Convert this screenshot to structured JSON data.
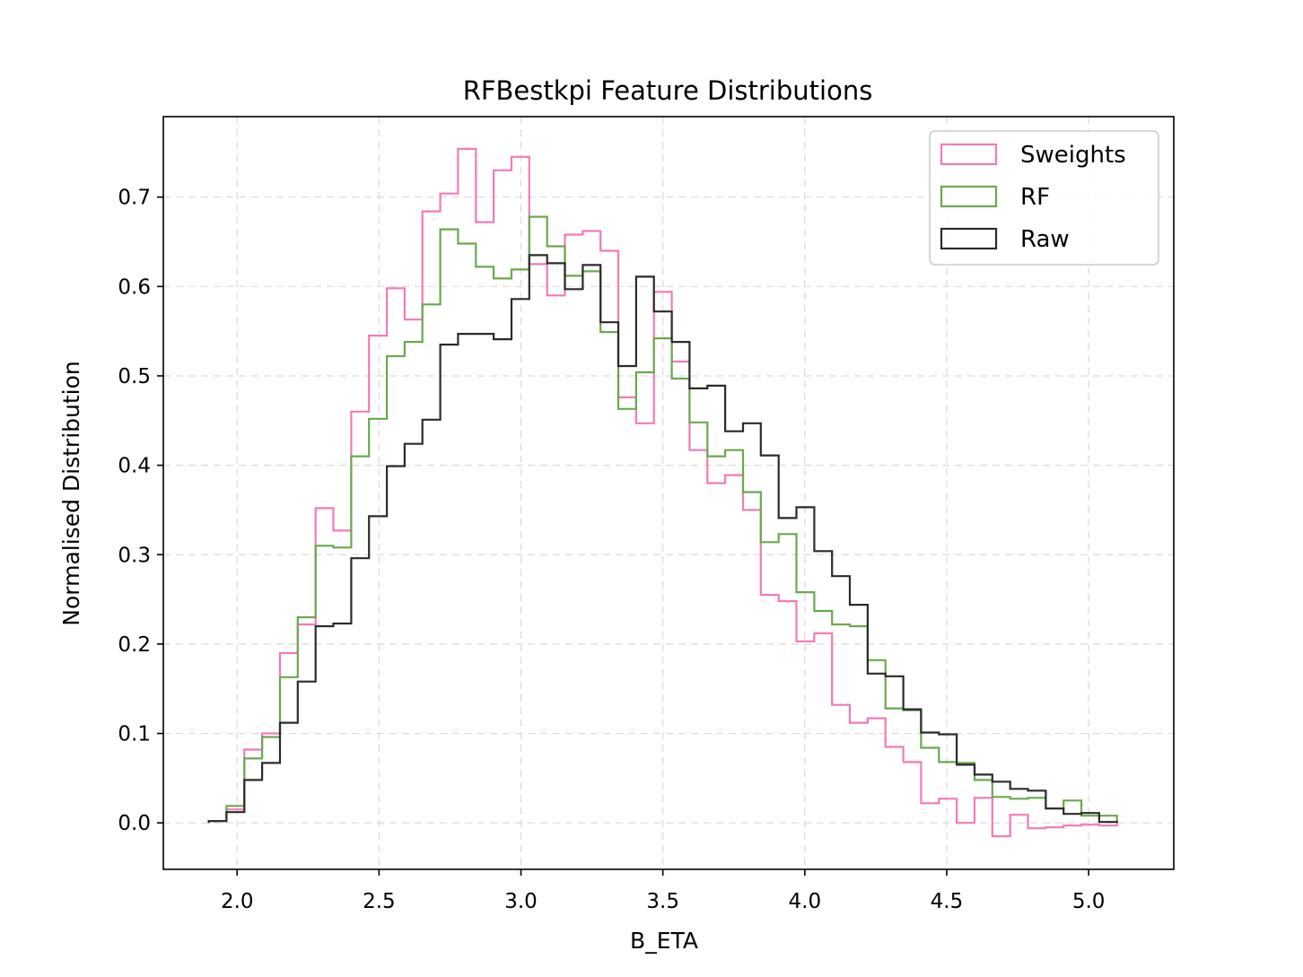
{
  "chart_data": {
    "type": "histogram-step",
    "title": "RFBestkpi Feature Distributions",
    "xlabel": "B_ETA",
    "ylabel": "Normalised Distribution",
    "xlim": [
      1.74,
      5.3
    ],
    "ylim": [
      -0.052,
      0.79
    ],
    "xticks": [
      2.0,
      2.5,
      3.0,
      3.5,
      4.0,
      4.5,
      5.0
    ],
    "xtick_labels": [
      "2.0",
      "2.5",
      "3.0",
      "3.5",
      "4.0",
      "4.5",
      "5.0"
    ],
    "yticks": [
      0.0,
      0.1,
      0.2,
      0.3,
      0.4,
      0.5,
      0.6,
      0.7
    ],
    "ytick_labels": [
      "0.0",
      "0.1",
      "0.2",
      "0.3",
      "0.4",
      "0.5",
      "0.6",
      "0.7"
    ],
    "grid": true,
    "legend_position": "top-right",
    "bin_edges": [
      1.9,
      1.9627,
      2.0255,
      2.0882,
      2.151,
      2.2137,
      2.2765,
      2.3392,
      2.402,
      2.4647,
      2.5275,
      2.5902,
      2.6529,
      2.7157,
      2.7784,
      2.8412,
      2.9039,
      2.9667,
      3.0294,
      3.0922,
      3.1549,
      3.2176,
      3.2804,
      3.3431,
      3.4059,
      3.4686,
      3.5314,
      3.5941,
      3.6569,
      3.7196,
      3.7824,
      3.8451,
      3.9078,
      3.9706,
      4.0333,
      4.0961,
      4.1588,
      4.2216,
      4.2843,
      4.3471,
      4.4098,
      4.4725,
      4.5353,
      4.598,
      4.6608,
      4.7235,
      4.7863,
      4.849,
      4.9118,
      4.9745,
      5.0373,
      5.1
    ],
    "series": [
      {
        "name": "Sweights",
        "color": "#f27ab8",
        "values": [
          0.002,
          0.015,
          0.082,
          0.1,
          0.19,
          0.222,
          0.352,
          0.327,
          0.46,
          0.545,
          0.598,
          0.563,
          0.684,
          0.704,
          0.754,
          0.672,
          0.73,
          0.745,
          0.625,
          0.59,
          0.658,
          0.662,
          0.64,
          0.476,
          0.447,
          0.594,
          0.516,
          0.417,
          0.38,
          0.389,
          0.35,
          0.255,
          0.248,
          0.203,
          0.212,
          0.132,
          0.112,
          0.117,
          0.085,
          0.068,
          0.022,
          0.027,
          0.0,
          0.028,
          -0.015,
          0.009,
          -0.006,
          -0.005,
          -0.003,
          -0.002,
          -0.003
        ]
      },
      {
        "name": "RF",
        "color": "#6aa84f",
        "values": [
          0.002,
          0.019,
          0.072,
          0.096,
          0.163,
          0.23,
          0.31,
          0.308,
          0.41,
          0.452,
          0.522,
          0.538,
          0.58,
          0.664,
          0.648,
          0.622,
          0.609,
          0.619,
          0.678,
          0.645,
          0.612,
          0.617,
          0.549,
          0.463,
          0.504,
          0.542,
          0.497,
          0.448,
          0.41,
          0.417,
          0.37,
          0.314,
          0.323,
          0.258,
          0.237,
          0.222,
          0.22,
          0.182,
          0.128,
          0.126,
          0.084,
          0.068,
          0.067,
          0.048,
          0.029,
          0.027,
          0.028,
          0.016,
          0.025,
          0.008,
          0.008
        ]
      },
      {
        "name": "Raw",
        "color": "#2b2b2b",
        "values": [
          0.002,
          0.012,
          0.048,
          0.067,
          0.112,
          0.158,
          0.22,
          0.223,
          0.296,
          0.343,
          0.399,
          0.424,
          0.451,
          0.535,
          0.547,
          0.547,
          0.541,
          0.586,
          0.635,
          0.626,
          0.597,
          0.624,
          0.56,
          0.511,
          0.611,
          0.572,
          0.538,
          0.486,
          0.489,
          0.438,
          0.447,
          0.411,
          0.341,
          0.353,
          0.304,
          0.276,
          0.244,
          0.167,
          0.164,
          0.127,
          0.101,
          0.099,
          0.065,
          0.054,
          0.046,
          0.038,
          0.036,
          0.016,
          0.01,
          0.011,
          0.001
        ]
      }
    ]
  }
}
